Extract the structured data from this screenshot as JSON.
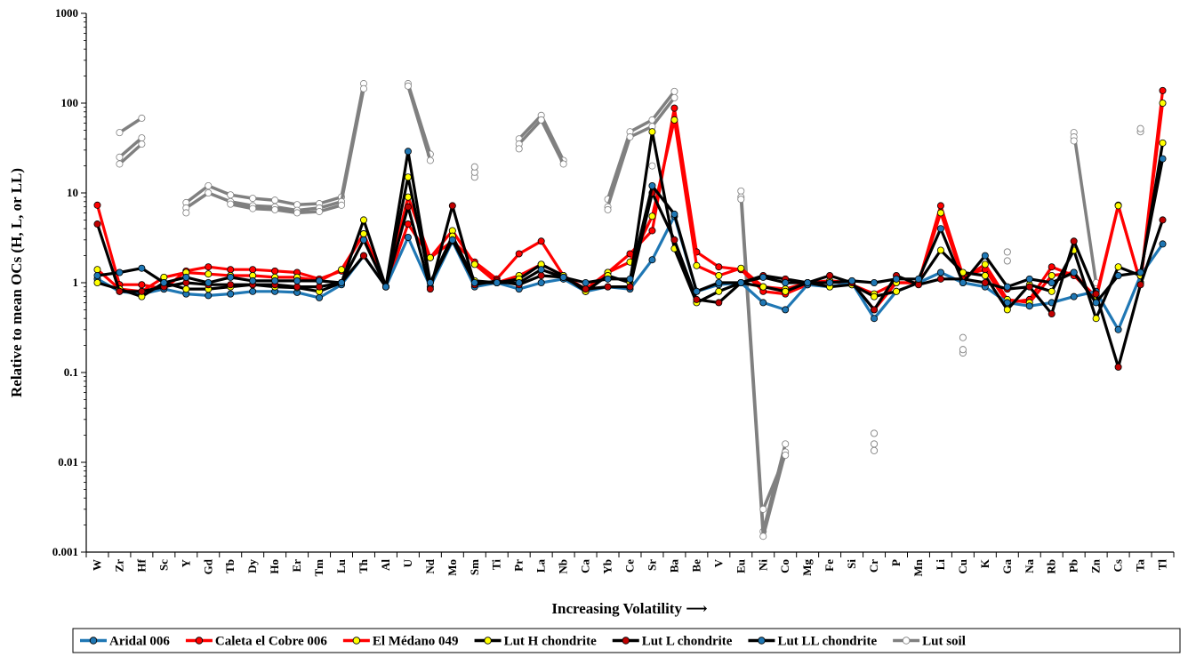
{
  "chart_data": {
    "type": "line",
    "ylabel": "Relative to mean OCs (H, L, or LL)",
    "xlabel": "Increasing Volatility ⟶",
    "y_scale": "log",
    "ylim": [
      0.001,
      1000
    ],
    "y_ticks": [
      "0.001",
      "0.01",
      "0.1",
      "1",
      "10",
      "100",
      "1000"
    ],
    "grid": false,
    "legend_position": "bottom",
    "categories": [
      "W",
      "Zr",
      "Hf",
      "Sc",
      "Y",
      "Gd",
      "Tb",
      "Dy",
      "Ho",
      "Er",
      "Tm",
      "Lu",
      "Th",
      "Al",
      "U",
      "Nd",
      "Mo",
      "Sm",
      "Ti",
      "Pr",
      "La",
      "Nb",
      "Ca",
      "Yb",
      "Ce",
      "Sr",
      "Ba",
      "Be",
      "V",
      "Eu",
      "Ni",
      "Co",
      "Mg",
      "Fe",
      "Si",
      "Cr",
      "P",
      "Mn",
      "Li",
      "Cu",
      "K",
      "Ga",
      "Na",
      "Rb",
      "Pb",
      "Zn",
      "Cs",
      "Ta",
      "Tl"
    ],
    "series": [
      {
        "name": "Aridal 006",
        "line_color": "#1f77b4",
        "marker_color": "#1f77b4",
        "values": [
          1.1,
          0.8,
          0.75,
          0.85,
          0.75,
          0.72,
          0.75,
          0.8,
          0.8,
          0.78,
          0.68,
          0.95,
          2.0,
          0.9,
          3.2,
          0.9,
          2.9,
          0.9,
          1.0,
          0.85,
          1.0,
          1.1,
          0.8,
          0.9,
          0.85,
          1.8,
          5.5,
          0.8,
          0.95,
          1.0,
          0.6,
          0.5,
          0.95,
          0.9,
          1.0,
          0.4,
          0.8,
          1.0,
          1.3,
          1.0,
          0.9,
          0.6,
          0.55,
          0.6,
          0.7,
          0.8,
          0.3,
          1.2,
          2.7
        ]
      },
      {
        "name": "Caleta el Cobre 006",
        "line_color": "#ff0000",
        "marker_color": "#ff0000",
        "values": [
          7.3,
          0.95,
          0.95,
          0.85,
          1.35,
          1.5,
          1.4,
          1.4,
          1.35,
          1.3,
          1.1,
          1.35,
          3.5,
          0.9,
          4.5,
          1.9,
          2.9,
          1.7,
          1.1,
          2.1,
          2.9,
          1.2,
          0.85,
          1.3,
          2.1,
          3.8,
          88,
          2.2,
          1.5,
          1.4,
          0.8,
          0.75,
          0.95,
          1.05,
          1.0,
          0.5,
          1.0,
          1.0,
          7.2,
          1.2,
          1.4,
          0.6,
          0.65,
          1.5,
          1.2,
          0.7,
          7.3,
          1.0,
          138
        ]
      },
      {
        "name": "El Médano 049",
        "line_color": "#ff0000",
        "marker_color": "#ffff00",
        "values": [
          1.4,
          0.85,
          0.8,
          1.15,
          1.3,
          1.25,
          1.2,
          1.2,
          1.15,
          1.15,
          1.05,
          1.4,
          3.5,
          0.9,
          9.0,
          1.9,
          3.8,
          1.6,
          1.0,
          1.2,
          1.6,
          1.2,
          0.8,
          1.3,
          1.7,
          5.5,
          65,
          1.55,
          1.2,
          1.45,
          0.9,
          0.85,
          1.0,
          1.05,
          0.95,
          0.75,
          1.0,
          1.0,
          6.0,
          1.1,
          1.6,
          0.65,
          0.6,
          1.2,
          1.3,
          0.65,
          7.2,
          1.0,
          100
        ]
      },
      {
        "name": "Lut H chondrite",
        "line_color": "#000000",
        "marker_color": "#ffff00",
        "series_note": "",
        "values": [
          1.0,
          0.85,
          0.7,
          1.0,
          0.85,
          0.85,
          0.9,
          0.95,
          0.9,
          0.88,
          0.8,
          1.0,
          5.0,
          0.9,
          15,
          1.0,
          3.3,
          1.05,
          1.0,
          1.1,
          1.6,
          1.2,
          0.8,
          1.2,
          1.0,
          48,
          2.4,
          0.6,
          0.8,
          1.0,
          0.9,
          0.8,
          1.0,
          0.9,
          0.95,
          0.7,
          0.8,
          1.0,
          2.3,
          1.3,
          1.2,
          0.5,
          0.95,
          0.8,
          2.3,
          0.4,
          1.5,
          1.2,
          36
        ]
      },
      {
        "name": "Lut L chondrite",
        "line_color": "#000000",
        "marker_color": "#c00000",
        "values": [
          4.5,
          0.8,
          0.8,
          0.9,
          1.0,
          0.95,
          0.95,
          0.95,
          0.95,
          0.9,
          0.9,
          1.0,
          2.0,
          0.9,
          7.0,
          0.85,
          7.2,
          0.95,
          1.05,
          0.95,
          1.2,
          1.15,
          0.85,
          0.9,
          0.9,
          10,
          3.0,
          0.65,
          0.6,
          1.0,
          1.2,
          1.1,
          1.0,
          1.2,
          1.0,
          0.5,
          1.2,
          0.95,
          1.1,
          1.1,
          1.0,
          0.85,
          0.9,
          0.45,
          2.9,
          0.75,
          0.115,
          0.95,
          5.0
        ]
      },
      {
        "name": "Lut LL chondrite",
        "line_color": "#000000",
        "marker_color": "#1f77b4",
        "values": [
          1.2,
          1.3,
          1.45,
          1.0,
          1.15,
          1.0,
          1.15,
          1.05,
          1.05,
          1.05,
          1.05,
          1.0,
          3.0,
          0.9,
          29,
          1.0,
          3.0,
          1.0,
          1.0,
          1.0,
          1.4,
          1.15,
          1.0,
          1.1,
          1.1,
          12,
          5.8,
          0.8,
          1.0,
          1.0,
          1.15,
          1.0,
          1.0,
          1.0,
          1.05,
          1.0,
          1.1,
          1.1,
          4.0,
          1.0,
          2.0,
          0.9,
          1.1,
          1.0,
          1.3,
          0.6,
          1.2,
          1.3,
          24
        ]
      },
      {
        "name": "Lut soil",
        "line_color": "#808080",
        "marker_color": "#ffffff",
        "lines": [
          {
            "values": [
              null,
              47,
              68,
              null,
              7.8,
              12,
              9.5,
              8.7,
              8.3,
              7.4,
              7.6,
              9.0,
              165,
              null,
              165,
              27,
              null,
              null,
              null,
              40,
              73,
              23,
              null,
              8.5,
              48,
              65,
              135,
              null,
              null,
              10.5,
              0.0017,
              0.016,
              null,
              null,
              null,
              null,
              null,
              null,
              null,
              null,
              null,
              null,
              null,
              null,
              47,
              1.0,
              null,
              null,
              null
            ]
          },
          {
            "values": [
              null,
              25,
              41,
              null,
              6.8,
              10,
              8.0,
              7.2,
              7.0,
              6.4,
              6.8,
              8.0,
              145,
              null,
              155,
              23,
              null,
              null,
              null,
              35,
              65,
              21,
              null,
              7.0,
              42,
              55,
              115,
              null,
              null,
              9.0,
              0.0015,
              0.013,
              null,
              null,
              null,
              null,
              null,
              null,
              null,
              null,
              null,
              null,
              null,
              null,
              42,
              null,
              null,
              null,
              null
            ]
          },
          {
            "values": [
              null,
              21,
              35,
              null,
              6.0,
              null,
              7.5,
              6.7,
              6.5,
              6.0,
              6.2,
              7.3,
              null,
              null,
              null,
              null,
              null,
              null,
              null,
              31,
              null,
              null,
              null,
              6.5,
              null,
              20,
              null,
              null,
              null,
              null,
              0.003,
              0.012,
              null,
              null,
              null,
              null,
              null,
              null,
              null,
              null,
              null,
              null,
              null,
              null,
              38,
              null,
              null,
              null,
              null
            ]
          }
        ],
        "isolated_points": [
          {
            "category": "Sm",
            "values": [
              15,
              17,
              19.5
            ]
          },
          {
            "category": "Cu",
            "values": [
              0.165,
              0.18,
              0.245
            ]
          },
          {
            "category": "Cr",
            "values": [
              0.0135,
              0.016,
              0.021
            ]
          },
          {
            "category": "Ga",
            "values": [
              1.75,
              2.2
            ]
          },
          {
            "category": "Ta",
            "values": [
              48,
              52
            ]
          },
          {
            "category": "Eu",
            "values": [
              8.5
            ]
          }
        ]
      }
    ]
  }
}
